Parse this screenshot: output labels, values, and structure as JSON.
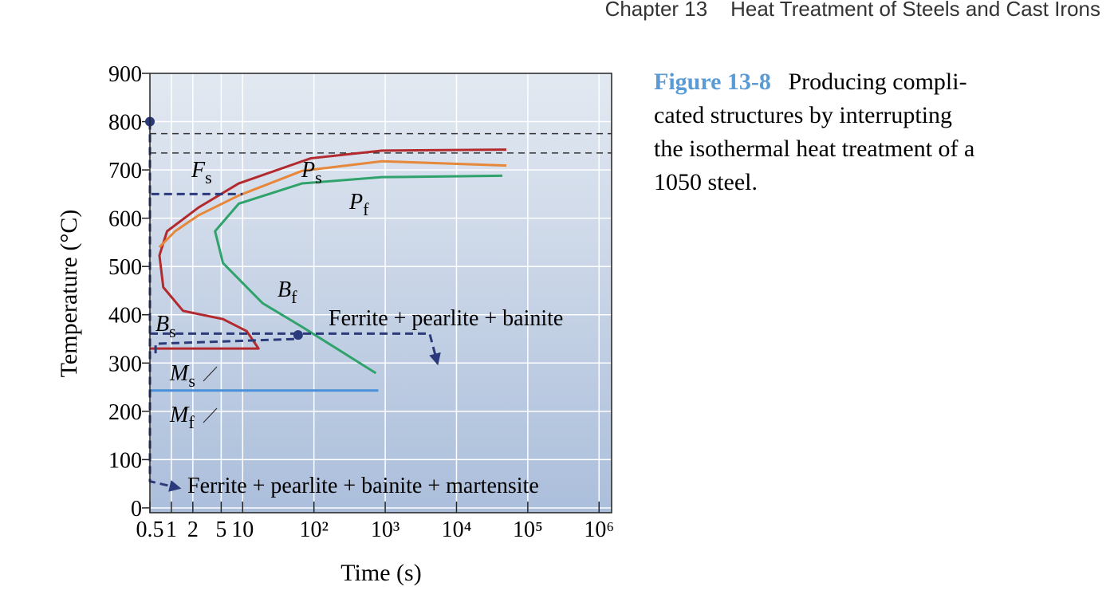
{
  "header": "Chapter 13    Heat Treatment of Steels and Cast Irons",
  "caption": {
    "label": "Figure 13-8",
    "lines": [
      "Producing compli-",
      "cated structures by interrupting",
      "the isothermal heat treatment of a",
      "1050 steel."
    ]
  },
  "chart_data": {
    "type": "line",
    "x_scale": "log",
    "grid": true,
    "xlabel": "Time (s)",
    "ylabel": "Temperature (°C)",
    "xlim": [
      0.5,
      1500000
    ],
    "ylim": [
      -10,
      900
    ],
    "xticks": [
      0.5,
      1,
      2,
      5,
      10,
      {
        "value": 100,
        "label": "10²"
      },
      {
        "value": 1000,
        "label": "10³"
      },
      {
        "value": 10000,
        "label": "10⁴"
      },
      {
        "value": 100000,
        "label": "10⁵"
      },
      {
        "value": 1000000,
        "label": "10⁶"
      }
    ],
    "yticks": [
      0,
      100,
      200,
      300,
      400,
      500,
      600,
      700,
      800,
      900
    ],
    "hlines": [
      775,
      735
    ],
    "series": [
      {
        "color": "#b22a2e",
        "x": [
          50000,
          900,
          90,
          8.8,
          2.4,
          0.87,
          0.68,
          0.77,
          1.46,
          5.3,
          11.4,
          16.7,
          0.5
        ],
        "values": [
          742,
          740,
          724,
          672,
          622,
          573,
          523,
          457,
          408,
          391,
          366,
          330,
          330
        ]
      },
      {
        "color": "#e6873a",
        "x": [
          50000,
          900,
          68,
          8.8,
          2.4,
          1.13,
          0.68
        ],
        "values": [
          709,
          718,
          698,
          647,
          606,
          573,
          540
        ]
      },
      {
        "color": "#2fa36b",
        "x": [
          44000,
          900,
          68,
          8.8,
          4.1,
          5.3,
          19,
          68,
          740
        ],
        "values": [
          688,
          685,
          672,
          630,
          573,
          507,
          424,
          375,
          279
        ]
      },
      {
        "color": "#4a90d9",
        "x": [
          0.5,
          800
        ],
        "values": [
          243,
          243
        ]
      },
      {
        "color": "#2b3a7a",
        "dash": true,
        "arrow": true,
        "x": [
          0.5,
          0.5,
          1.28
        ],
        "values": [
          800,
          55,
          41
        ]
      },
      {
        "color": "#2b3a7a",
        "dash": true,
        "x": [
          0.5,
          0.5,
          10
        ],
        "values": [
          600,
          650,
          650
        ]
      },
      {
        "color": "#2b3a7a",
        "dash": true,
        "arrow": true,
        "x": [
          0.5,
          4200,
          5400
        ],
        "values": [
          361,
          361,
          300
        ]
      },
      {
        "color": "#2b3a7a",
        "dash": true,
        "x": [
          0.6,
          0.6,
          60
        ],
        "values": [
          320,
          340,
          350
        ]
      }
    ],
    "points": [
      {
        "x": 0.5,
        "y": 800
      },
      {
        "x": 60,
        "y": 358
      }
    ],
    "annotations": [
      {
        "text": "F",
        "sub": "s"
      },
      {
        "text": "P",
        "sub": "s"
      },
      {
        "text": "P",
        "sub": "f"
      },
      {
        "text": "B",
        "sub": "f"
      },
      {
        "text": "B",
        "sub": "s"
      },
      {
        "text": "M",
        "sub": "s"
      },
      {
        "text": "M",
        "sub": "f"
      },
      {
        "text": "Ferrite + pearlite + bainite"
      },
      {
        "text": "Ferrite + pearlite + bainite + martensite"
      }
    ]
  }
}
